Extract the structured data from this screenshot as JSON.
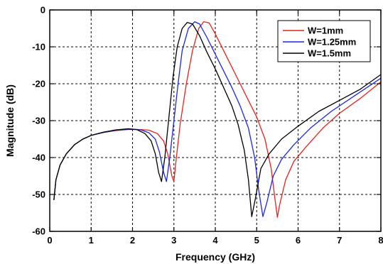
{
  "chart_data": {
    "type": "line",
    "title": "",
    "xlabel": "Frequency (GHz)",
    "ylabel": "Magnitude (dB)",
    "xlim": [
      0,
      8
    ],
    "ylim": [
      -60,
      0
    ],
    "xticks": [
      0,
      1,
      2,
      3,
      4,
      5,
      6,
      7,
      8
    ],
    "yticks": [
      0,
      -10,
      -20,
      -30,
      -40,
      -50,
      -60
    ],
    "grid": true,
    "legend_position": "top-right",
    "series": [
      {
        "name": "W=1mm",
        "color": "#e8211c",
        "points": [
          [
            0.1,
            -51.5
          ],
          [
            0.15,
            -46
          ],
          [
            0.25,
            -42
          ],
          [
            0.4,
            -39
          ],
          [
            0.6,
            -36.5
          ],
          [
            0.8,
            -35
          ],
          [
            1.0,
            -34
          ],
          [
            1.3,
            -33.2
          ],
          [
            1.6,
            -32.7
          ],
          [
            1.9,
            -32.4
          ],
          [
            2.2,
            -32.4
          ],
          [
            2.4,
            -32.6
          ],
          [
            2.6,
            -33.5
          ],
          [
            2.75,
            -35.5
          ],
          [
            2.85,
            -39
          ],
          [
            2.95,
            -45
          ],
          [
            3.0,
            -46.5
          ],
          [
            3.05,
            -41
          ],
          [
            3.15,
            -31
          ],
          [
            3.3,
            -20
          ],
          [
            3.45,
            -11
          ],
          [
            3.6,
            -5
          ],
          [
            3.72,
            -3.2
          ],
          [
            3.85,
            -3.5
          ],
          [
            4.0,
            -6.5
          ],
          [
            4.2,
            -11
          ],
          [
            4.4,
            -15.5
          ],
          [
            4.6,
            -20
          ],
          [
            4.8,
            -24.5
          ],
          [
            5.0,
            -29
          ],
          [
            5.2,
            -35
          ],
          [
            5.35,
            -43
          ],
          [
            5.45,
            -52
          ],
          [
            5.5,
            -56.2
          ],
          [
            5.55,
            -53
          ],
          [
            5.7,
            -46
          ],
          [
            5.9,
            -41
          ],
          [
            6.2,
            -37
          ],
          [
            6.6,
            -32
          ],
          [
            7.0,
            -28
          ],
          [
            7.5,
            -24
          ],
          [
            8.0,
            -19.5
          ]
        ]
      },
      {
        "name": "W=1.25mm",
        "color": "#1c25e8",
        "points": [
          [
            0.1,
            -51.5
          ],
          [
            0.15,
            -46
          ],
          [
            0.25,
            -42
          ],
          [
            0.4,
            -39
          ],
          [
            0.6,
            -36.5
          ],
          [
            0.8,
            -35
          ],
          [
            1.0,
            -34
          ],
          [
            1.3,
            -33.2
          ],
          [
            1.6,
            -32.6
          ],
          [
            1.9,
            -32.3
          ],
          [
            2.2,
            -32.5
          ],
          [
            2.4,
            -33.3
          ],
          [
            2.55,
            -35
          ],
          [
            2.65,
            -38.5
          ],
          [
            2.75,
            -44
          ],
          [
            2.82,
            -46.5
          ],
          [
            2.9,
            -40
          ],
          [
            3.0,
            -30
          ],
          [
            3.1,
            -20
          ],
          [
            3.2,
            -11
          ],
          [
            3.35,
            -5
          ],
          [
            3.5,
            -3.2
          ],
          [
            3.62,
            -3.8
          ],
          [
            3.8,
            -7.5
          ],
          [
            4.0,
            -12
          ],
          [
            4.2,
            -16.5
          ],
          [
            4.4,
            -21
          ],
          [
            4.6,
            -26
          ],
          [
            4.8,
            -32
          ],
          [
            4.95,
            -40
          ],
          [
            5.05,
            -49
          ],
          [
            5.15,
            -56
          ],
          [
            5.25,
            -52
          ],
          [
            5.4,
            -45
          ],
          [
            5.6,
            -40.5
          ],
          [
            5.9,
            -36.5
          ],
          [
            6.3,
            -32
          ],
          [
            6.8,
            -27.5
          ],
          [
            7.4,
            -23
          ],
          [
            8.0,
            -18.5
          ]
        ]
      },
      {
        "name": "W=1.5mm",
        "color": "#000000",
        "points": [
          [
            0.1,
            -51.5
          ],
          [
            0.15,
            -46
          ],
          [
            0.25,
            -42
          ],
          [
            0.4,
            -39
          ],
          [
            0.6,
            -36.5
          ],
          [
            0.8,
            -35
          ],
          [
            1.0,
            -34
          ],
          [
            1.3,
            -33.1
          ],
          [
            1.6,
            -32.5
          ],
          [
            1.9,
            -32.2
          ],
          [
            2.1,
            -32.4
          ],
          [
            2.3,
            -33.5
          ],
          [
            2.45,
            -35.5
          ],
          [
            2.55,
            -39
          ],
          [
            2.63,
            -44
          ],
          [
            2.7,
            -46.5
          ],
          [
            2.78,
            -40
          ],
          [
            2.88,
            -29
          ],
          [
            2.98,
            -18
          ],
          [
            3.08,
            -10
          ],
          [
            3.2,
            -5
          ],
          [
            3.32,
            -3.4
          ],
          [
            3.45,
            -3.8
          ],
          [
            3.62,
            -7
          ],
          [
            3.8,
            -11.5
          ],
          [
            4.0,
            -16
          ],
          [
            4.2,
            -21
          ],
          [
            4.4,
            -26
          ],
          [
            4.55,
            -31
          ],
          [
            4.7,
            -38
          ],
          [
            4.8,
            -46
          ],
          [
            4.88,
            -56
          ],
          [
            4.97,
            -51
          ],
          [
            5.1,
            -43
          ],
          [
            5.3,
            -39
          ],
          [
            5.6,
            -35
          ],
          [
            6.0,
            -31.5
          ],
          [
            6.5,
            -27.5
          ],
          [
            7.0,
            -24.5
          ],
          [
            7.5,
            -21.5
          ],
          [
            8.0,
            -17.5
          ]
        ]
      }
    ]
  }
}
